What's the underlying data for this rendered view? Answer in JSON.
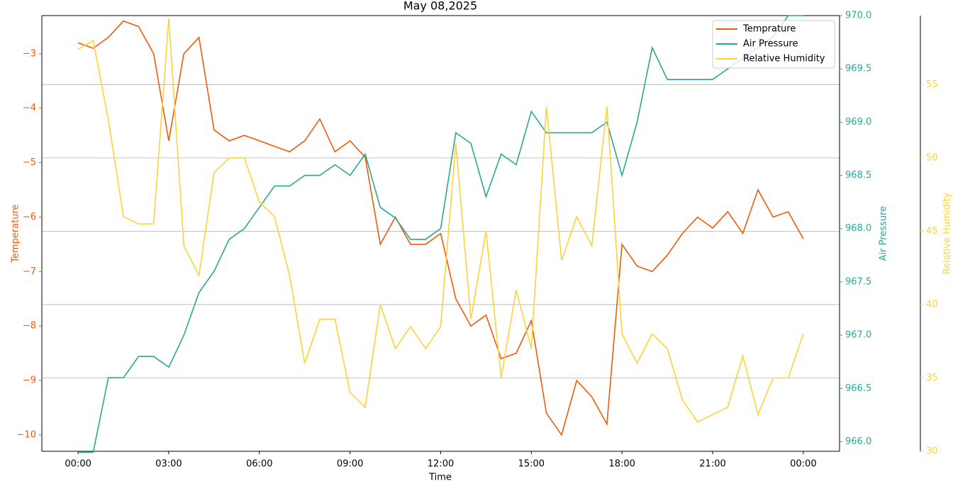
{
  "chart_data": {
    "type": "line",
    "title": "May 08,2025",
    "xlabel": "Time",
    "x": [
      0,
      0.5,
      1,
      1.5,
      2,
      2.5,
      3,
      3.5,
      4,
      4.5,
      5,
      5.5,
      6,
      6.5,
      7,
      7.5,
      8,
      8.5,
      9,
      9.5,
      10,
      10.5,
      11,
      11.5,
      12,
      12.5,
      13,
      13.5,
      14,
      14.5,
      15,
      15.5,
      16,
      16.5,
      17,
      17.5,
      18,
      18.5,
      19,
      19.5,
      20,
      20.5,
      21,
      21.5,
      22,
      22.5,
      23,
      23.5,
      24
    ],
    "xlim": [
      -1.2,
      25.2
    ],
    "xticks": [
      {
        "value": 0,
        "label": "00:00"
      },
      {
        "value": 3,
        "label": "03:00"
      },
      {
        "value": 6,
        "label": "06:00"
      },
      {
        "value": 9,
        "label": "09:00"
      },
      {
        "value": 12,
        "label": "12:00"
      },
      {
        "value": 15,
        "label": "15:00"
      },
      {
        "value": 18,
        "label": "18:00"
      },
      {
        "value": 21,
        "label": "21:00"
      },
      {
        "value": 24,
        "label": "00:00"
      }
    ],
    "ylabel": "Temperature",
    "ylim": [
      -10.3,
      -2.3
    ],
    "yticks": [
      {
        "value": -3,
        "label": "−3"
      },
      {
        "value": -4,
        "label": "−4"
      },
      {
        "value": -5,
        "label": "−5"
      },
      {
        "value": -6,
        "label": "−6"
      },
      {
        "value": -7,
        "label": "−7"
      },
      {
        "value": -8,
        "label": "−8"
      },
      {
        "value": -9,
        "label": "−9"
      },
      {
        "value": -10,
        "label": "−10"
      }
    ],
    "y2label": "Air Pressure",
    "y2lim": [
      965.91,
      970.0
    ],
    "y2ticks": [
      {
        "value": 966,
        "label": "966.0"
      },
      {
        "value": 966.5,
        "label": "966.5"
      },
      {
        "value": 967,
        "label": "967.0"
      },
      {
        "value": 967.5,
        "label": "967.5"
      },
      {
        "value": 968,
        "label": "968.0"
      },
      {
        "value": 968.5,
        "label": "968.5"
      },
      {
        "value": 969,
        "label": "969.0"
      },
      {
        "value": 969.5,
        "label": "969.5"
      },
      {
        "value": 970,
        "label": "970.0"
      }
    ],
    "y3label": "Relative Humidity",
    "y3lim": [
      30,
      59.7
    ],
    "y3ticks": [
      30,
      35,
      40,
      45,
      50,
      55
    ],
    "grid": "y3",
    "legend": "upper-right",
    "series": [
      {
        "name": "Temprature",
        "color": "#f05a0a",
        "axis": "y",
        "values": [
          -2.8,
          -2.9,
          -2.7,
          -2.4,
          -2.5,
          -3.0,
          -4.6,
          -3.0,
          -2.7,
          -4.4,
          -4.6,
          -4.5,
          -4.6,
          -4.7,
          -4.8,
          -4.6,
          -4.2,
          -4.8,
          -4.6,
          -4.9,
          -6.5,
          -6.0,
          -6.5,
          -6.5,
          -6.3,
          -7.5,
          -8.0,
          -7.8,
          -8.6,
          -8.5,
          -7.9,
          -9.6,
          -10.0,
          -9.0,
          -9.3,
          -9.8,
          -6.5,
          -6.9,
          -7.0,
          -6.7,
          -6.3,
          -6.0,
          -6.2,
          -5.9,
          -6.3,
          -5.5,
          -6.0,
          -5.9,
          -6.4
        ]
      },
      {
        "name": "Air Pressure",
        "color": "#2aa88f",
        "axis": "y2",
        "values": [
          965.9,
          965.9,
          966.6,
          966.6,
          966.8,
          966.8,
          966.7,
          967.0,
          967.4,
          967.6,
          967.9,
          968.0,
          968.2,
          968.4,
          968.4,
          968.5,
          968.5,
          968.6,
          968.5,
          968.7,
          968.2,
          968.1,
          967.9,
          967.9,
          968.0,
          968.9,
          968.8,
          968.3,
          968.7,
          968.6,
          969.1,
          968.9,
          968.9,
          968.9,
          968.9,
          969.0,
          968.5,
          969.0,
          969.7,
          969.4,
          969.4,
          969.4,
          969.4,
          969.5,
          969.6,
          969.7,
          969.8,
          970.0,
          970.0
        ]
      },
      {
        "name": "Relative Humidity",
        "color": "#fdd23a",
        "axis": "y3",
        "values": [
          57.4,
          58,
          52.6,
          46,
          45.5,
          45.5,
          59.5,
          44,
          42,
          49,
          50,
          50,
          47,
          46,
          42,
          36,
          39,
          39,
          34,
          33,
          40,
          37,
          38.5,
          37,
          38.5,
          51,
          39,
          45,
          35,
          41,
          37,
          53.5,
          43,
          46,
          44,
          53.5,
          38,
          36,
          38,
          37,
          33.5,
          32,
          32.5,
          33,
          36.5,
          32.5,
          35,
          35,
          38
        ]
      }
    ]
  }
}
